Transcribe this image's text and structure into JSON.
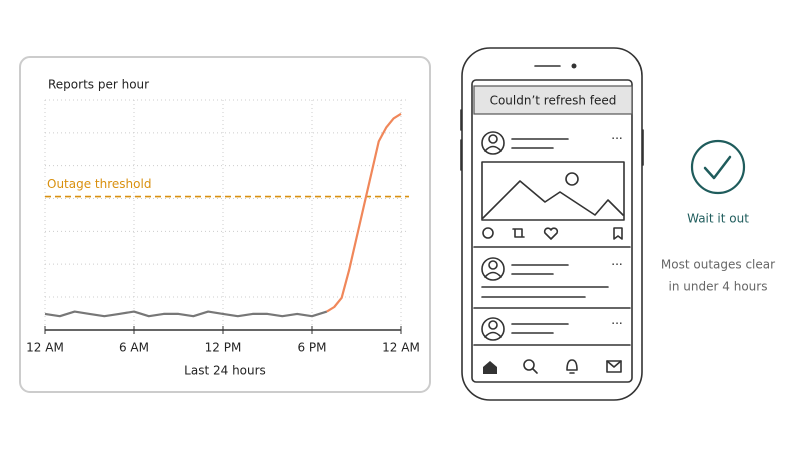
{
  "chart_data": {
    "type": "line",
    "title": "Reports per hour",
    "x_label": "Last 24 hours",
    "x": [
      0,
      1,
      2,
      3,
      4,
      5,
      6,
      7,
      8,
      9,
      10,
      11,
      12,
      13,
      14,
      15,
      16,
      17,
      18,
      19,
      19.5,
      20,
      20.5,
      21,
      21.5,
      22,
      22.5,
      23,
      23.5,
      24
    ],
    "series": [
      {
        "color": "#777777",
        "values": [
          7,
          6,
          8,
          7,
          6,
          7,
          8,
          6,
          7,
          7,
          6,
          8,
          7,
          6,
          7,
          7,
          6,
          7,
          6,
          8,
          null,
          null,
          null,
          null,
          null,
          null,
          null,
          null,
          null,
          null
        ]
      },
      {
        "color": "#f0875a",
        "values": [
          null,
          null,
          null,
          null,
          null,
          null,
          null,
          null,
          null,
          null,
          null,
          null,
          null,
          null,
          null,
          null,
          null,
          null,
          null,
          8,
          10,
          14,
          26,
          40,
          54,
          68,
          82,
          88,
          92,
          94
        ]
      }
    ],
    "xlim": [
      0,
      24
    ],
    "xticks": [
      {
        "value": 0,
        "label": "12 AM"
      },
      {
        "value": 6,
        "label": "6 AM"
      },
      {
        "value": 12,
        "label": "12 PM"
      },
      {
        "value": 18,
        "label": "6 PM"
      },
      {
        "value": 24,
        "label": "12 AM"
      }
    ],
    "ylim": [
      0,
      100
    ],
    "grid": true,
    "threshold": {
      "label": "Outage threshold",
      "value": 58,
      "color": "#d9900f"
    }
  },
  "phone": {
    "banner": "Couldn’t refresh feed"
  },
  "advice": {
    "title": "Wait it out",
    "lines": [
      "Most outages clear",
      "in under 4 hours"
    ]
  }
}
